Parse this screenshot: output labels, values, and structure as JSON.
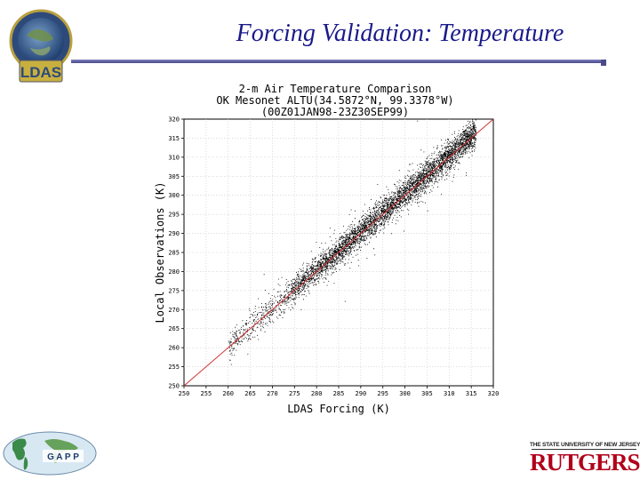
{
  "slide": {
    "title": "Forcing Validation: Temperature",
    "ldas_logo_text": "LDAS",
    "gapp_logo_text": "G A P P",
    "rutgers_tagline": "THE STATE UNIVERSITY OF NEW JERSEY",
    "rutgers_wordmark": "RUTGERS"
  },
  "colors": {
    "title": "#1a1a8a",
    "points": "#000000",
    "one_to_one_line": "#d03030",
    "rutgers_red": "#b0001a"
  },
  "chart_data": {
    "type": "scatter",
    "title": [
      "2-m Air Temperature Comparison",
      "OK Mesonet ALTU(34.5872°N, 99.3378°W)",
      "(00Z01JAN98-23Z30SEP99)"
    ],
    "xlabel": "LDAS Forcing (K)",
    "ylabel": "Local Observations (K)",
    "xlim": [
      250,
      320
    ],
    "ylim": [
      250,
      320
    ],
    "xticks": [
      "250",
      "255",
      "260",
      "265",
      "270",
      "275",
      "280",
      "285",
      "290",
      "295",
      "300",
      "305",
      "310",
      "315",
      "320"
    ],
    "yticks": [
      "250",
      "255",
      "260",
      "265",
      "270",
      "275",
      "280",
      "285",
      "290",
      "295",
      "300",
      "305",
      "310",
      "315",
      "320"
    ],
    "grid": true,
    "reference_line": {
      "from": [
        250,
        250
      ],
      "to": [
        320,
        320
      ]
    },
    "point_cloud": {
      "approx_range_x": [
        260,
        316
      ],
      "approx_range_y": [
        261,
        316
      ],
      "center_offset_y": 0.5,
      "spread": 1.8
    }
  }
}
